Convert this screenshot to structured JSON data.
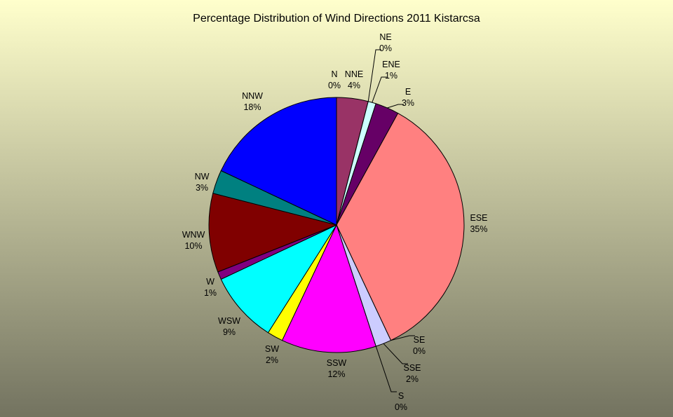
{
  "chart_data": {
    "type": "pie",
    "title": "Percentage Distribution of Wind Directions 2011 Kistarcsa",
    "categories": [
      "N",
      "NNE",
      "NE",
      "ENE",
      "E",
      "ESE",
      "SE",
      "SSE",
      "S",
      "SSW",
      "SW",
      "WSW",
      "W",
      "WNW",
      "NW",
      "NNW"
    ],
    "values": [
      0,
      4,
      0,
      1,
      3,
      35,
      0,
      2,
      0,
      12,
      2,
      9,
      1,
      10,
      3,
      18
    ],
    "value_labels": [
      "0%",
      "4%",
      "0%",
      "1%",
      "3%",
      "35%",
      "0%",
      "2%",
      "0%",
      "12%",
      "2%",
      "9%",
      "1%",
      "10%",
      "3%",
      "18%"
    ],
    "colors": [
      "#9999ff",
      "#993366",
      "#ffffcc",
      "#ccffff",
      "#660066",
      "#ff8080",
      "#0066cc",
      "#ccccff",
      "#000080",
      "#ff00ff",
      "#ffff00",
      "#00ffff",
      "#800080",
      "#800000",
      "#008080",
      "#0000ff"
    ]
  }
}
